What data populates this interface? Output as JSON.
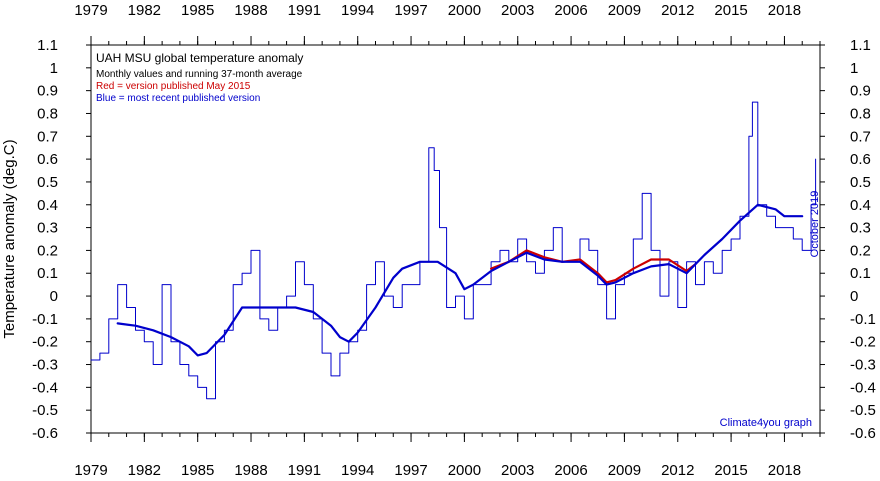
{
  "chart_data": {
    "type": "line",
    "title": "UAH MSU global temperature anomaly",
    "subtitle": "Monthly values and running 37-month average",
    "legend": [
      {
        "text": "Red = version published May 2015",
        "color": "#cc0000"
      },
      {
        "text": "Blue = most recent published version",
        "color": "#0000cc"
      }
    ],
    "ylabel": "Temperature anomaly (deg.C)",
    "annotation_date": "October 2019",
    "credit": "Climate4you graph",
    "xlim": [
      1979,
      2020
    ],
    "ylim": [
      -0.6,
      1.1
    ],
    "x_ticks": [
      "1979",
      "1982",
      "1985",
      "1988",
      "1991",
      "1994",
      "1997",
      "2000",
      "2003",
      "2006",
      "2009",
      "2012",
      "2015",
      "2018"
    ],
    "y_ticks": [
      "1.1",
      "1",
      "0.9",
      "0.8",
      "0.7",
      "0.6",
      "0.5",
      "0.4",
      "0.3",
      "0.2",
      "0.1",
      "0",
      "-0.1",
      "-0.2",
      "-0.3",
      "-0.4",
      "-0.5",
      "-0.6"
    ],
    "series": [
      {
        "name": "Blue = most recent published version",
        "color": "#0000cc",
        "kind": "monthly",
        "x": [
          1979.0,
          1979.5,
          1980.0,
          1980.5,
          1981.0,
          1981.5,
          1982.0,
          1982.5,
          1983.0,
          1983.5,
          1984.0,
          1984.5,
          1985.0,
          1985.5,
          1986.0,
          1986.5,
          1987.0,
          1987.5,
          1988.0,
          1988.5,
          1989.0,
          1989.5,
          1990.0,
          1990.5,
          1991.0,
          1991.5,
          1992.0,
          1992.5,
          1993.0,
          1993.5,
          1994.0,
          1994.5,
          1995.0,
          1995.5,
          1996.0,
          1996.5,
          1997.0,
          1997.5,
          1998.0,
          1998.3,
          1998.6,
          1999.0,
          1999.5,
          2000.0,
          2000.5,
          2001.0,
          2001.5,
          2002.0,
          2002.5,
          2003.0,
          2003.5,
          2004.0,
          2004.5,
          2005.0,
          2005.5,
          2006.0,
          2006.5,
          2007.0,
          2007.5,
          2008.0,
          2008.5,
          2009.0,
          2009.5,
          2010.0,
          2010.5,
          2011.0,
          2011.5,
          2012.0,
          2012.5,
          2013.0,
          2013.5,
          2014.0,
          2014.5,
          2015.0,
          2015.5,
          2016.0,
          2016.2,
          2016.5,
          2017.0,
          2017.5,
          2018.0,
          2018.5,
          2019.0,
          2019.5,
          2019.75
        ],
        "values": [
          -0.28,
          -0.25,
          -0.1,
          0.05,
          -0.05,
          -0.15,
          -0.2,
          -0.3,
          0.05,
          -0.2,
          -0.3,
          -0.35,
          -0.4,
          -0.45,
          -0.2,
          -0.15,
          0.05,
          0.1,
          0.2,
          -0.1,
          -0.15,
          -0.05,
          0.0,
          0.15,
          0.05,
          -0.1,
          -0.25,
          -0.35,
          -0.25,
          -0.2,
          -0.15,
          0.05,
          0.15,
          0.0,
          -0.05,
          0.05,
          0.05,
          0.15,
          0.65,
          0.55,
          0.3,
          -0.05,
          0.0,
          -0.1,
          0.05,
          0.05,
          0.15,
          0.2,
          0.15,
          0.25,
          0.15,
          0.1,
          0.2,
          0.3,
          0.15,
          0.15,
          0.25,
          0.2,
          0.05,
          -0.1,
          0.05,
          0.1,
          0.25,
          0.45,
          0.2,
          0.0,
          0.15,
          -0.05,
          0.15,
          0.05,
          0.15,
          0.1,
          0.2,
          0.25,
          0.35,
          0.7,
          0.85,
          0.4,
          0.35,
          0.3,
          0.3,
          0.25,
          0.2,
          0.4,
          0.6
        ]
      },
      {
        "name": "Red = version published May 2015",
        "color": "#cc0000",
        "kind": "running-average",
        "x": [
          2001.5,
          2002.5,
          2003.5,
          2004.5,
          2005.5,
          2006.5,
          2007.5,
          2008.0,
          2008.5,
          2009.5,
          2010.5,
          2011.5,
          2012.5,
          2013.0
        ],
        "values": [
          0.12,
          0.15,
          0.2,
          0.17,
          0.15,
          0.16,
          0.1,
          0.06,
          0.07,
          0.12,
          0.16,
          0.16,
          0.11,
          0.14
        ]
      },
      {
        "name": "Blue = most recent published version",
        "color": "#0000cc",
        "kind": "running-average",
        "x": [
          1980.5,
          1981.5,
          1982.5,
          1983.5,
          1984.5,
          1985.0,
          1985.5,
          1986.5,
          1987.5,
          1988.5,
          1989.5,
          1990.5,
          1991.5,
          1992.5,
          1993.0,
          1993.5,
          1994.0,
          1995.0,
          1996.0,
          1996.5,
          1997.5,
          1998.5,
          1999.5,
          2000.0,
          2000.5,
          2001.5,
          2002.5,
          2003.5,
          2004.5,
          2005.5,
          2006.5,
          2007.5,
          2008.0,
          2008.5,
          2009.5,
          2010.5,
          2011.5,
          2012.5,
          2013.5,
          2014.5,
          2015.5,
          2016.5,
          2017.5,
          2018.0,
          2018.5,
          2019.0
        ],
        "values": [
          -0.12,
          -0.13,
          -0.15,
          -0.18,
          -0.22,
          -0.26,
          -0.25,
          -0.17,
          -0.05,
          -0.05,
          -0.05,
          -0.05,
          -0.07,
          -0.13,
          -0.18,
          -0.2,
          -0.16,
          -0.05,
          0.08,
          0.12,
          0.15,
          0.15,
          0.1,
          0.03,
          0.05,
          0.11,
          0.15,
          0.19,
          0.16,
          0.15,
          0.15,
          0.09,
          0.05,
          0.06,
          0.1,
          0.13,
          0.14,
          0.1,
          0.18,
          0.25,
          0.33,
          0.4,
          0.38,
          0.35,
          0.35,
          0.35
        ]
      }
    ]
  }
}
